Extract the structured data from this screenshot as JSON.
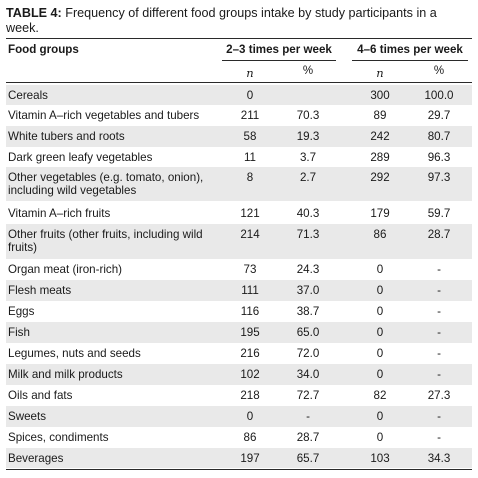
{
  "caption": {
    "label": "TABLE 4:",
    "text": " Frequency of different food groups intake by study participants in a week."
  },
  "headers": {
    "food_groups": "Food groups",
    "group1": "2–3 times per week",
    "group2": "4–6 times per week",
    "n": "n",
    "pct": "%"
  },
  "rows": [
    {
      "name": "Cereals",
      "n1": "0",
      "p1": "",
      "n2": "300",
      "p2": "100.0",
      "shade": true
    },
    {
      "name": "Vitamin A–rich vegetables and tubers",
      "n1": "211",
      "p1": "70.3",
      "n2": "89",
      "p2": "29.7",
      "shade": false
    },
    {
      "name": "White tubers and roots",
      "n1": "58",
      "p1": "19.3",
      "n2": "242",
      "p2": "80.7",
      "shade": true
    },
    {
      "name": "Dark green leafy vegetables",
      "n1": "11",
      "p1": "3.7",
      "n2": "289",
      "p2": "96.3",
      "shade": false
    },
    {
      "name": "Other vegetables (e.g. tomato, onion), including wild vegetables",
      "n1": "8",
      "p1": "2.7",
      "n2": "292",
      "p2": "97.3",
      "shade": true
    },
    {
      "name": "Vitamin A–rich fruits",
      "n1": "121",
      "p1": "40.3",
      "n2": "179",
      "p2": "59.7",
      "shade": false
    },
    {
      "name": "Other fruits (other fruits, including wild fruits)",
      "n1": "214",
      "p1": "71.3",
      "n2": "86",
      "p2": "28.7",
      "shade": true
    },
    {
      "name": "Organ meat (iron-rich)",
      "n1": "73",
      "p1": "24.3",
      "n2": "0",
      "p2": "-",
      "shade": false
    },
    {
      "name": "Flesh meats",
      "n1": "111",
      "p1": "37.0",
      "n2": "0",
      "p2": "-",
      "shade": true
    },
    {
      "name": "Eggs",
      "n1": "116",
      "p1": "38.7",
      "n2": "0",
      "p2": "-",
      "shade": false
    },
    {
      "name": "Fish",
      "n1": "195",
      "p1": "65.0",
      "n2": "0",
      "p2": "-",
      "shade": true
    },
    {
      "name": "Legumes, nuts and seeds",
      "n1": "216",
      "p1": "72.0",
      "n2": "0",
      "p2": "-",
      "shade": false
    },
    {
      "name": "Milk and milk products",
      "n1": "102",
      "p1": "34.0",
      "n2": "0",
      "p2": "-",
      "shade": true
    },
    {
      "name": "Oils and fats",
      "n1": "218",
      "p1": "72.7",
      "n2": "82",
      "p2": "27.3",
      "shade": false
    },
    {
      "name": "Sweets",
      "n1": "0",
      "p1": "-",
      "n2": "0",
      "p2": "-",
      "shade": true
    },
    {
      "name": "Spices, condiments",
      "n1": "86",
      "p1": "28.7",
      "n2": "0",
      "p2": "-",
      "shade": false
    },
    {
      "name": "Beverages",
      "n1": "197",
      "p1": "65.7",
      "n2": "103",
      "p2": "34.3",
      "shade": true
    }
  ]
}
